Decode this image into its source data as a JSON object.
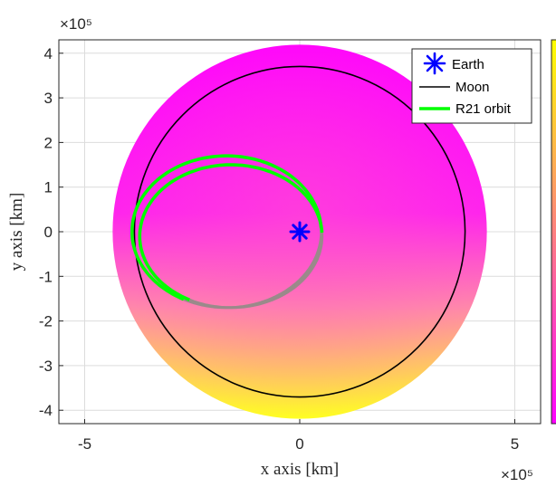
{
  "chart_data": {
    "type": "line",
    "xlabel": "x axis [km]",
    "ylabel": "y axis [km]",
    "x_exponent_label": "×10⁵",
    "y_exponent_label": "×10⁵",
    "xlim": [
      -5.6,
      5.6
    ],
    "ylim": [
      -4.3,
      4.3
    ],
    "axis_scale": 100000,
    "x_ticks": [
      -5,
      0,
      5
    ],
    "x_tick_labels": [
      "-5",
      "0",
      "5"
    ],
    "y_ticks": [
      4,
      3,
      2,
      1,
      0,
      -1,
      -2,
      -3,
      -4
    ],
    "y_tick_labels": [
      "4",
      "3",
      "2",
      "1",
      "0",
      "-1",
      "-2",
      "-3",
      "-4"
    ],
    "grid": true,
    "legend_position": "top-right",
    "legend": [
      {
        "label": "Earth",
        "marker": "asterisk",
        "color": "#0000ff"
      },
      {
        "label": "Moon",
        "marker": "line",
        "color": "#000000"
      },
      {
        "label": "R21 orbit",
        "marker": "line",
        "color": "#00ff00"
      }
    ],
    "series": [
      {
        "name": "Earth",
        "type": "point",
        "x": [
          0
        ],
        "y": [
          0
        ]
      },
      {
        "name": "Moon",
        "type": "circle",
        "center": [
          0,
          0
        ],
        "radius_km": 384400
      },
      {
        "name": "R21 orbit",
        "type": "ellipse-arcs",
        "loops": [
          {
            "center_km": [
              -170000,
              0
            ],
            "semi_x_km": 220000,
            "semi_y_km": 170000
          },
          {
            "center_km": [
              -160000,
              -10000
            ],
            "semi_x_km": 212000,
            "semi_y_km": 160000
          }
        ]
      }
    ],
    "background": "pole-shaded disk, magenta at top to yellow at bottom",
    "colormap": {
      "top": "#ff00ff",
      "bottom": "#ffff00"
    }
  },
  "colors": {
    "earth": "#0000ff",
    "moon": "#000000",
    "orbit": "#00ff00",
    "shadow_orbit": "#9a8a8a",
    "grid": "#dcdcdc",
    "axis": "#262626"
  }
}
